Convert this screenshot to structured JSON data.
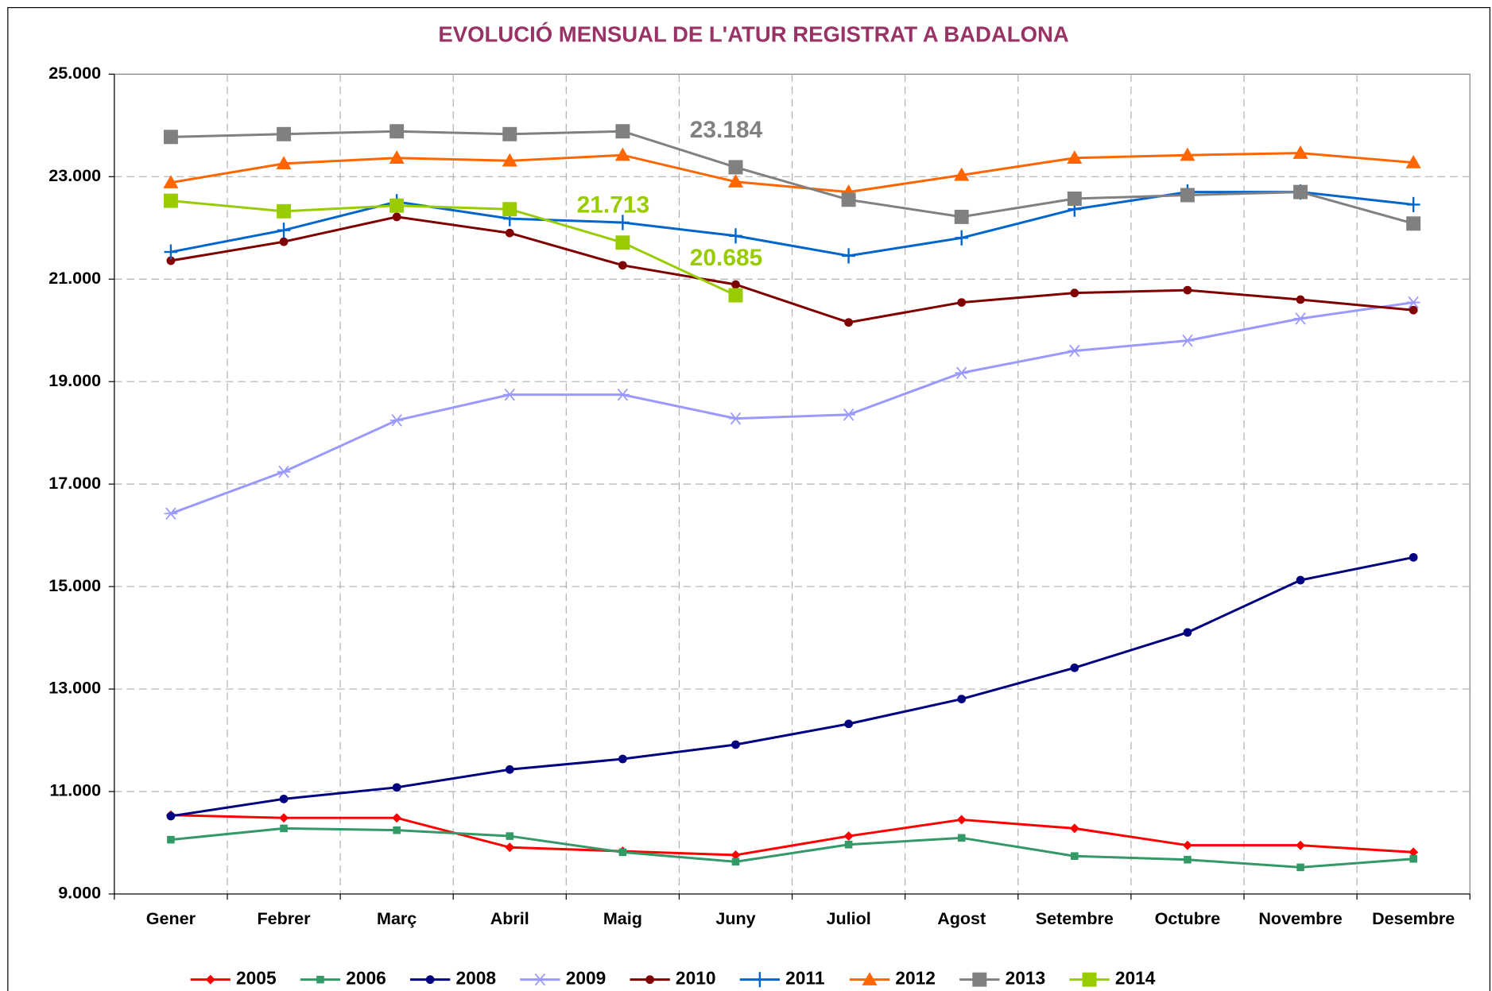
{
  "chart_data": {
    "type": "line",
    "title": "EVOLUCIÓ MENSUAL DE L'ATUR REGISTRAT A BADALONA",
    "categories": [
      "Gener",
      "Febrer",
      "Març",
      "Abril",
      "Maig",
      "Juny",
      "Juliol",
      "Agost",
      "Setembre",
      "Octubre",
      "Novembre",
      "Desembre"
    ],
    "ylim": [
      9000,
      25000
    ],
    "yticks": [
      {
        "value": 9000,
        "label": "9.000"
      },
      {
        "value": 11000,
        "label": "11.000"
      },
      {
        "value": 13000,
        "label": "13.000"
      },
      {
        "value": 15000,
        "label": "15.000"
      },
      {
        "value": 17000,
        "label": "17.000"
      },
      {
        "value": 19000,
        "label": "19.000"
      },
      {
        "value": 21000,
        "label": "21.000"
      },
      {
        "value": 23000,
        "label": "23.000"
      },
      {
        "value": 25000,
        "label": "25.000"
      }
    ],
    "grid": true,
    "legend": "bottom",
    "series": [
      {
        "name": "2005",
        "color": "#ff0000",
        "marker": "diamond",
        "values": [
          10540,
          10485,
          10485,
          9910,
          9835,
          9760,
          10130,
          10450,
          10280,
          9950,
          9950,
          9815
        ]
      },
      {
        "name": "2006",
        "color": "#339966",
        "marker": "square",
        "values": [
          10060,
          10280,
          10245,
          10130,
          9815,
          9630,
          9965,
          10095,
          9740,
          9670,
          9520,
          9685
        ]
      },
      {
        "name": "2008",
        "color": "#000080",
        "marker": "circle",
        "values": [
          10520,
          10855,
          11080,
          11430,
          11635,
          11915,
          12320,
          12805,
          13415,
          14105,
          15125,
          15570
        ]
      },
      {
        "name": "2009",
        "color": "#9999ff",
        "marker": "asterisk",
        "values": [
          16425,
          17240,
          18245,
          18745,
          18745,
          18280,
          18355,
          19170,
          19600,
          19800,
          20230,
          20545
        ]
      },
      {
        "name": "2010",
        "color": "#800000",
        "marker": "circle",
        "values": [
          21360,
          21730,
          22215,
          21900,
          21270,
          20895,
          20155,
          20545,
          20730,
          20785,
          20600,
          20395
        ]
      },
      {
        "name": "2011",
        "color": "#0066cc",
        "marker": "plus",
        "values": [
          21530,
          21955,
          22510,
          22180,
          22105,
          21845,
          21455,
          21805,
          22365,
          22700,
          22700,
          22455
        ]
      },
      {
        "name": "2012",
        "color": "#ff6600",
        "marker": "triangle",
        "values": [
          22885,
          23255,
          23365,
          23310,
          23420,
          22900,
          22700,
          23030,
          23365,
          23420,
          23460,
          23275
        ]
      },
      {
        "name": "2013",
        "color": "#808080",
        "marker": "bigsquare",
        "values": [
          23775,
          23830,
          23885,
          23830,
          23885,
          23184,
          22550,
          22215,
          22570,
          22640,
          22700,
          22085
        ],
        "value_labels": [
          null,
          null,
          null,
          null,
          null,
          "23.184",
          null,
          null,
          null,
          null,
          null,
          null
        ]
      },
      {
        "name": "2014",
        "color": "#99cc00",
        "marker": "bigsquare",
        "values": [
          22530,
          22325,
          22435,
          22365,
          21713,
          20685,
          null,
          null,
          null,
          null,
          null,
          null
        ],
        "value_labels": [
          null,
          null,
          null,
          null,
          "21.713",
          "20.685",
          null,
          null,
          null,
          null,
          null,
          null
        ]
      }
    ]
  }
}
